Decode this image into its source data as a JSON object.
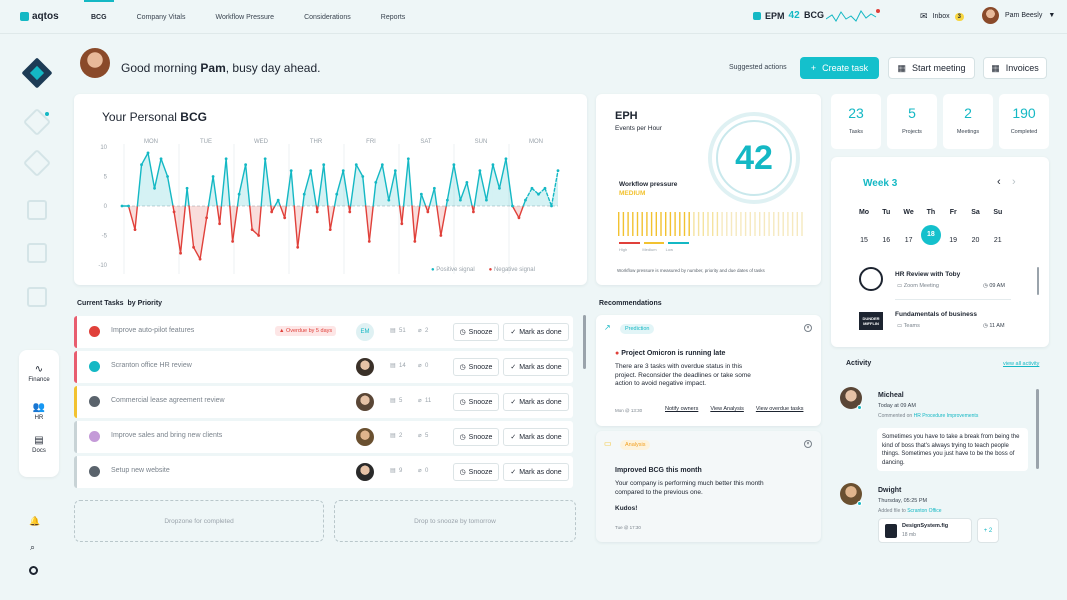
{
  "header": {
    "logo": "aqtos",
    "tabs": [
      "BCG",
      "Company Vitals",
      "Workflow Pressure",
      "Considerations",
      "Reports"
    ],
    "epm_label": "EPM",
    "epm_value": "42",
    "bcg_label": "BCG",
    "inbox_label": "Inbox",
    "inbox_count": "3",
    "user_name": "Pam Beesly"
  },
  "greeting": {
    "prefix": "Good morning ",
    "name": "Pam",
    "suffix": ", busy day ahead."
  },
  "actions": {
    "suggested": "Suggested actions",
    "create_task": "Create task",
    "start_meeting": "Start meeting",
    "invoices": "Invoices"
  },
  "left_panel": [
    {
      "label": "Finance",
      "icon": "chart-line-icon"
    },
    {
      "label": "HR",
      "icon": "people-icon"
    },
    {
      "label": "Docs",
      "icon": "document-icon"
    }
  ],
  "chart_data": {
    "type": "line",
    "title_prefix": "Your Personal ",
    "title_bold": "BCG",
    "days": [
      "MON",
      "TUE",
      "WED",
      "THR",
      "FRI",
      "SAT",
      "SUN",
      "MON"
    ],
    "y_ticks": [
      "10",
      "5",
      "0",
      "-5",
      "-10"
    ],
    "ylim": [
      -10,
      10
    ],
    "values": [
      0,
      0,
      -4,
      7,
      9,
      3,
      8,
      5,
      -1,
      -8,
      3,
      -7,
      -9,
      -2,
      5,
      -3,
      8,
      -6,
      2,
      7,
      -4,
      -5,
      8,
      -1,
      1,
      -2,
      6,
      -7,
      2,
      6,
      -1,
      7,
      -4,
      2,
      6,
      -1,
      7,
      5,
      -6,
      4,
      7,
      1,
      6,
      -3,
      8,
      -6,
      2,
      -1,
      3,
      -5,
      1,
      7,
      1,
      4,
      -1,
      6,
      1,
      7,
      3,
      8,
      0,
      -2,
      1,
      3,
      2,
      3,
      0,
      6
    ],
    "dashed_from_index": 62,
    "legend_positive": "Positive signal",
    "legend_negative": "Negative signal",
    "positive_color": "#14b8c4",
    "negative_color": "#e0403a"
  },
  "eph": {
    "title": "EPH",
    "subtitle": "Events per Hour",
    "value": "42",
    "pressure_label": "Workflow pressure",
    "pressure_level": "MEDIUM",
    "legend": [
      "High",
      "Medium",
      "Low"
    ],
    "note": "Workflow pressure is measured by number, priority and due dates of tasks"
  },
  "stats": [
    {
      "value": "23",
      "label": "Tasks"
    },
    {
      "value": "5",
      "label": "Projects"
    },
    {
      "value": "2",
      "label": "Meetings"
    },
    {
      "value": "190",
      "label": "Completed"
    }
  ],
  "calendar": {
    "week": "Week 3",
    "days": [
      "Mo",
      "Tu",
      "We",
      "Th",
      "Fr",
      "Sa",
      "Su"
    ],
    "dates": [
      "15",
      "16",
      "17",
      "18",
      "19",
      "20",
      "21"
    ],
    "selected_index": 3,
    "events": [
      {
        "title": "HR Review with Toby",
        "where": "Zoom Meeting",
        "time": "09 AM"
      },
      {
        "title": "Fundamentals of business",
        "where": "Teams",
        "time": "11 AM"
      }
    ]
  },
  "tasks": {
    "title": "Current Tasks",
    "subtitle": "by Priority",
    "rows": [
      {
        "name": "Improve auto-pilot features",
        "overdue": "Overdue by 5 days",
        "avatar": "EM",
        "comments": "51",
        "attachments": "2",
        "color": "#e85d6f"
      },
      {
        "name": "Scranton office HR review",
        "overdue": "",
        "avatar": "",
        "comments": "14",
        "attachments": "0",
        "color": "#e85d6f"
      },
      {
        "name": "Commercial lease agreement review",
        "overdue": "",
        "avatar": "",
        "comments": "5",
        "attachments": "11",
        "color": "#f2c230"
      },
      {
        "name": "Improve sales and bring new clients",
        "overdue": "",
        "avatar": "",
        "comments": "2",
        "attachments": "5",
        "color": "#c8d3d6"
      },
      {
        "name": "Setup new website",
        "overdue": "",
        "avatar": "",
        "comments": "9",
        "attachments": "0",
        "color": "#c8d3d6"
      }
    ],
    "snooze": "Snooze",
    "done": "Mark as done",
    "dropzone_completed": "Dropzone for completed",
    "dropzone_snooze": "Drop to snooze by tomorrow"
  },
  "recommendations": {
    "title": "Recommendations",
    "cards": [
      {
        "tag": "Prediction",
        "heading": "Project Omicron is running late",
        "body": "There are 3 tasks with overdue status in this project. Reconsider the deadlines or take some action to avoid negative impact.",
        "time": "Mon @ 13:30",
        "links": [
          "Notify owners",
          "View Analysis",
          "View overdue tasks"
        ]
      },
      {
        "tag": "Analysis",
        "heading": "Improved BCG this month",
        "body": "Your company is performing much better this month compared to the previous one.",
        "kudos": "Kudos!",
        "time": "Tue @ 17:30"
      }
    ]
  },
  "activity": {
    "title": "Activity",
    "view_all": "view all activity",
    "items": [
      {
        "name": "Micheal",
        "time": "Today at 09 AM",
        "action": "Commented on ",
        "target": "HR Procedure Improvements",
        "comment": "Sometimes you have to take a break from being the kind of boss that's always trying to teach people things. Sometimes you just have to be the boss of dancing."
      },
      {
        "name": "Dwight",
        "time": "Thursday, 05:25 PM",
        "action": "Added file to ",
        "target": "Scranton Office",
        "file_name": "DesignSystem.fig",
        "file_size": "18 mb",
        "more": "+ 2"
      }
    ]
  }
}
